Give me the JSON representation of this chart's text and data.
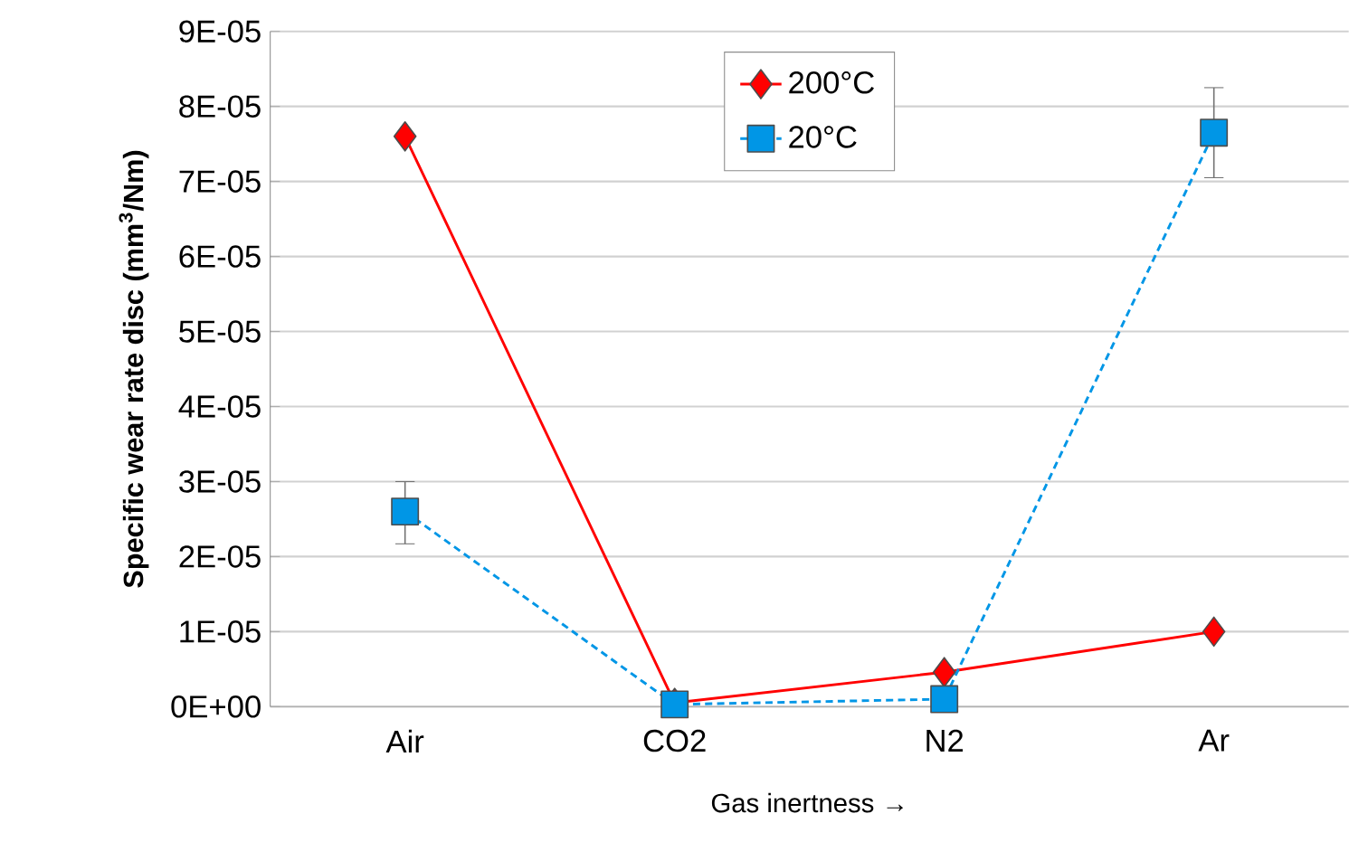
{
  "chart_data": {
    "type": "line",
    "xlabel": "Gas inertness →",
    "ylabel": "Specific wear rate disc (mm$^{3}$/Nm)",
    "categories": [
      "Air",
      "CO2",
      "N2",
      "Ar"
    ],
    "ylim": [
      0,
      9e-05
    ],
    "yticks": [
      {
        "value": 0,
        "label": "0E+00"
      },
      {
        "value": 1e-05,
        "label": "1E-05"
      },
      {
        "value": 2e-05,
        "label": "2E-05"
      },
      {
        "value": 3e-05,
        "label": "3E-05"
      },
      {
        "value": 4e-05,
        "label": "4E-05"
      },
      {
        "value": 5e-05,
        "label": "5E-05"
      },
      {
        "value": 6e-05,
        "label": "6E-05"
      },
      {
        "value": 7e-05,
        "label": "7E-05"
      },
      {
        "value": 8e-05,
        "label": "8E-05"
      },
      {
        "value": 9e-05,
        "label": "9E-05"
      }
    ],
    "grid": "y",
    "legend": "top",
    "series": [
      {
        "name": "200°C",
        "color": "#ff0000",
        "marker": "diamond",
        "line_style": "solid",
        "values": [
          7.6e-05,
          5e-07,
          4.6e-06,
          1e-05
        ]
      },
      {
        "name": "20°C",
        "color": "#0096e6",
        "marker": "square",
        "line_style": "dashed",
        "values": [
          2.6e-05,
          3e-07,
          1e-06,
          7.65e-05
        ],
        "errors": [
          [
            2.17e-05,
            3e-05
          ],
          null,
          null,
          [
            7.05e-05,
            8.25e-05
          ]
        ]
      }
    ]
  }
}
